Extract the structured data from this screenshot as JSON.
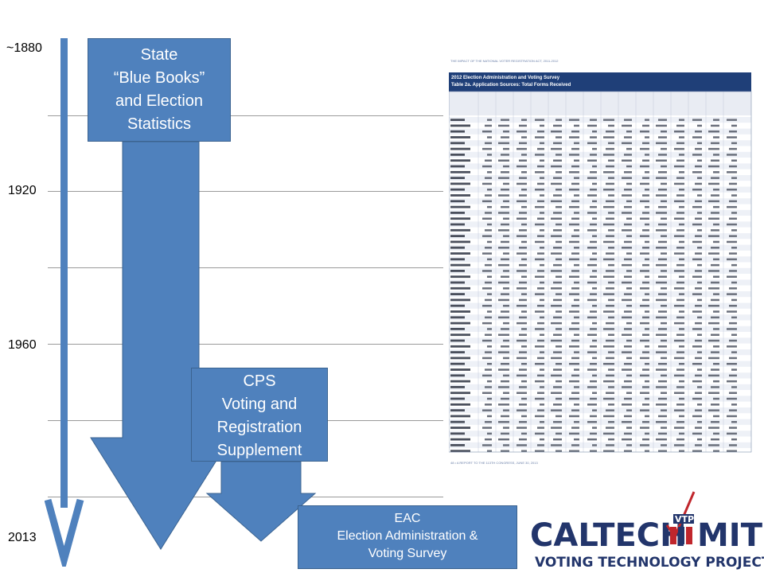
{
  "timeline": {
    "years": [
      "~1880",
      "1920",
      "1960",
      "2013"
    ]
  },
  "sources": {
    "state": [
      "State",
      "“Blue Books”",
      "and Election",
      "Statistics"
    ],
    "cps": [
      "CPS",
      "Voting and",
      "Registration",
      "Supplement"
    ],
    "eac": [
      "EAC",
      "Election Administration &",
      "Voting Survey"
    ]
  },
  "table_image": {
    "header": "THE IMPACT OF THE NATIONAL VOTER REGISTRATION ACT, 2011-2012",
    "title_line1": "2012 Election Administration and Voting Survey",
    "title_line2": "Table 2a. Application Sources: Total Forms Received",
    "footer": "48 • A REPORT TO THE 113TH CONGRESS, JUNE 30, 2013"
  },
  "logo": {
    "left": "CALTECH",
    "right": "MIT",
    "badge": "VTP",
    "subtitle": "VOTING TECHNOLOGY PROJECT"
  },
  "colors": {
    "box": "#4f81bd",
    "table_header": "#1f3f78",
    "logo_red": "#c0262c",
    "logo_navy": "#22356b"
  }
}
